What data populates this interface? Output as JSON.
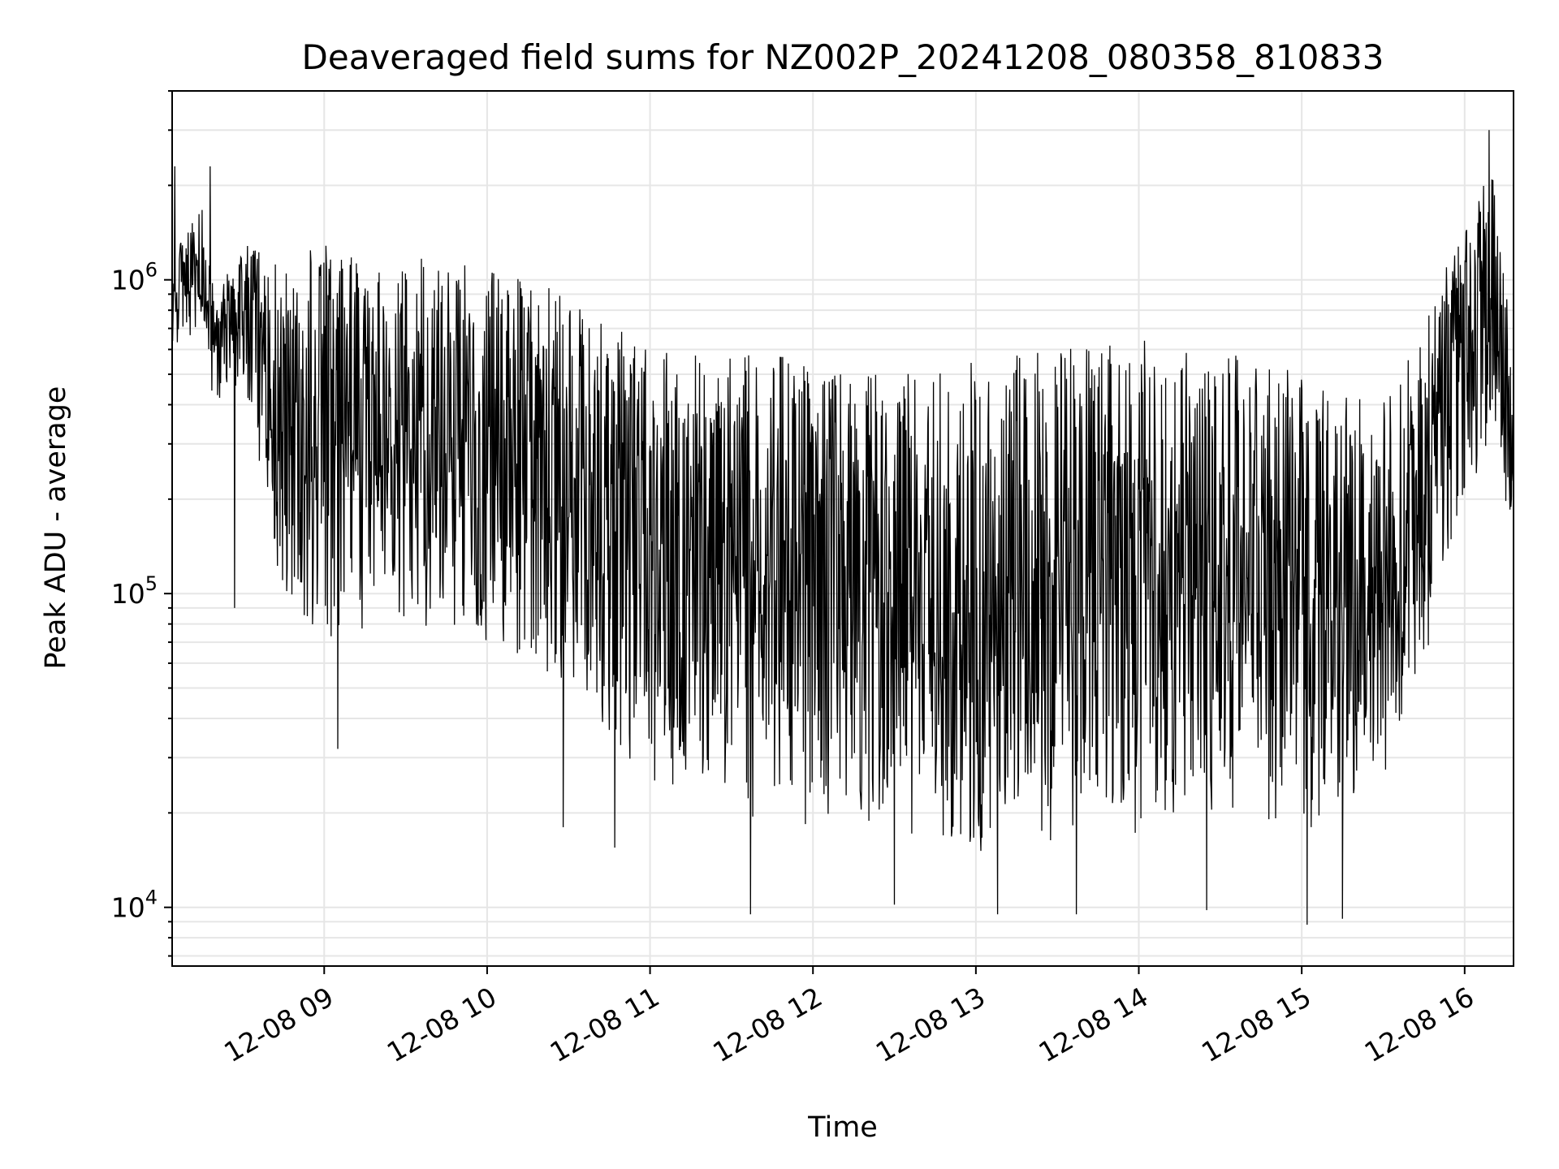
{
  "chart_data": {
    "type": "line",
    "title": "Deaveraged field sums for NZ002P_20241208_080358_810833",
    "xlabel": "Time",
    "ylabel": "Peak ADU - average",
    "y_scale": "log",
    "ylim": [
      6500,
      4000000
    ],
    "x_range": [
      "2024-12-08 08:04",
      "2024-12-08 16:18"
    ],
    "x_ticks": [
      {
        "time": "2024-12-08 09:00",
        "label": "12-08 09"
      },
      {
        "time": "2024-12-08 10:00",
        "label": "12-08 10"
      },
      {
        "time": "2024-12-08 11:00",
        "label": "12-08 11"
      },
      {
        "time": "2024-12-08 12:00",
        "label": "12-08 12"
      },
      {
        "time": "2024-12-08 13:00",
        "label": "12-08 13"
      },
      {
        "time": "2024-12-08 14:00",
        "label": "12-08 14"
      },
      {
        "time": "2024-12-08 15:00",
        "label": "12-08 15"
      },
      {
        "time": "2024-12-08 16:00",
        "label": "12-08 16"
      }
    ],
    "y_ticks": [
      {
        "value": 10000,
        "base": "10",
        "exp": "4"
      },
      {
        "value": 100000,
        "base": "10",
        "exp": "5"
      },
      {
        "value": 1000000,
        "base": "10",
        "exp": "6"
      }
    ],
    "grid": true,
    "line_color": "#000000",
    "grid_color": "#e6e6e6",
    "envelope": [
      {
        "time": "2024-12-08 08:04",
        "low": 600000,
        "high": 1200000
      },
      {
        "time": "2024-12-08 08:15",
        "low": 700000,
        "high": 1700000
      },
      {
        "time": "2024-12-08 08:20",
        "low": 350000,
        "high": 900000
      },
      {
        "time": "2024-12-08 08:30",
        "low": 500000,
        "high": 1300000
      },
      {
        "time": "2024-12-08 08:45",
        "low": 90000,
        "high": 1200000
      },
      {
        "time": "2024-12-08 09:00",
        "low": 70000,
        "high": 1300000
      },
      {
        "time": "2024-12-08 09:30",
        "low": 80000,
        "high": 1200000
      },
      {
        "time": "2024-12-08 10:00",
        "low": 70000,
        "high": 1100000
      },
      {
        "time": "2024-12-08 10:30",
        "low": 50000,
        "high": 900000
      },
      {
        "time": "2024-12-08 11:00",
        "low": 25000,
        "high": 600000
      },
      {
        "time": "2024-12-08 11:30",
        "low": 20000,
        "high": 600000
      },
      {
        "time": "2024-12-08 12:00",
        "low": 18000,
        "high": 550000
      },
      {
        "time": "2024-12-08 12:30",
        "low": 17000,
        "high": 500000
      },
      {
        "time": "2024-12-08 13:00",
        "low": 15000,
        "high": 550000
      },
      {
        "time": "2024-12-08 13:30",
        "low": 16000,
        "high": 600000
      },
      {
        "time": "2024-12-08 14:00",
        "low": 17000,
        "high": 650000
      },
      {
        "time": "2024-12-08 14:30",
        "low": 18000,
        "high": 600000
      },
      {
        "time": "2024-12-08 15:00",
        "low": 16000,
        "high": 500000
      },
      {
        "time": "2024-12-08 15:30",
        "low": 25000,
        "high": 450000
      },
      {
        "time": "2024-12-08 15:45",
        "low": 60000,
        "high": 700000
      },
      {
        "time": "2024-12-08 16:00",
        "low": 200000,
        "high": 1600000
      },
      {
        "time": "2024-12-08 16:10",
        "low": 300000,
        "high": 2300000
      },
      {
        "time": "2024-12-08 16:18",
        "low": 150000,
        "high": 600000
      }
    ],
    "spikes": [
      {
        "time": "2024-12-08 08:05",
        "value": 2300000
      },
      {
        "time": "2024-12-08 08:18",
        "value": 2300000
      },
      {
        "time": "2024-12-08 08:27",
        "value": 90000
      },
      {
        "time": "2024-12-08 09:05",
        "value": 32000
      },
      {
        "time": "2024-12-08 10:28",
        "value": 18000
      },
      {
        "time": "2024-12-08 10:47",
        "value": 15500
      },
      {
        "time": "2024-12-08 11:37",
        "value": 9500
      },
      {
        "time": "2024-12-08 12:30",
        "value": 10200
      },
      {
        "time": "2024-12-08 13:08",
        "value": 9500
      },
      {
        "time": "2024-12-08 13:37",
        "value": 9500
      },
      {
        "time": "2024-12-08 14:25",
        "value": 9800
      },
      {
        "time": "2024-12-08 15:02",
        "value": 8800
      },
      {
        "time": "2024-12-08 15:15",
        "value": 9200
      },
      {
        "time": "2024-12-08 16:09",
        "value": 3000000
      }
    ]
  }
}
